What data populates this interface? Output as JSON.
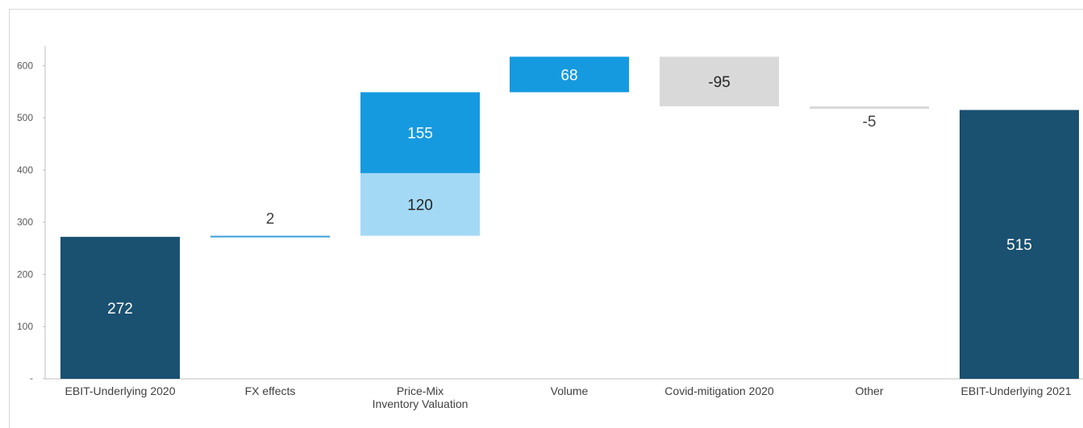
{
  "chart_data": {
    "type": "waterfall",
    "title": "",
    "xlabel": "",
    "ylabel": "",
    "ylim": [
      0,
      650
    ],
    "y_ticks": [
      {
        "value": 0,
        "label": "-"
      },
      {
        "value": 100,
        "label": "100"
      },
      {
        "value": 200,
        "label": "200"
      },
      {
        "value": 300,
        "label": "300"
      },
      {
        "value": 400,
        "label": "400"
      },
      {
        "value": 500,
        "label": "500"
      },
      {
        "value": 600,
        "label": "600"
      }
    ],
    "categories": [
      {
        "lines": [
          "EBIT-Underlying 2020"
        ]
      },
      {
        "lines": [
          "FX effects"
        ]
      },
      {
        "lines": [
          "Price-Mix",
          "Inventory Valuation"
        ]
      },
      {
        "lines": [
          "Volume"
        ]
      },
      {
        "lines": [
          "Covid-mitigation 2020"
        ]
      },
      {
        "lines": [
          "Other"
        ]
      },
      {
        "lines": [
          "EBIT-Underlying 2021"
        ]
      }
    ],
    "bars": [
      {
        "category": 0,
        "base": 0,
        "value": 272,
        "label": "272",
        "color": "#1a5070",
        "label_color": "#ffffff",
        "label_pos": "inside"
      },
      {
        "category": 1,
        "base": 272,
        "value": 2,
        "label": "2",
        "color": "#3b9fd6",
        "label_color": "#404040",
        "label_pos": "above"
      },
      {
        "category": 2,
        "base": 274,
        "value": 120,
        "label": "120",
        "color": "#a4d9f5",
        "label_color": "#262626",
        "label_pos": "inside"
      },
      {
        "category": 2,
        "base": 394,
        "value": 155,
        "label": "155",
        "color": "#159ae0",
        "label_color": "#ffffff",
        "label_pos": "inside"
      },
      {
        "category": 3,
        "base": 549,
        "value": 68,
        "label": "68",
        "color": "#159ae0",
        "label_color": "#ffffff",
        "label_pos": "inside"
      },
      {
        "category": 4,
        "base": 617,
        "value": -95,
        "label": "-95",
        "color": "#d9d9d9",
        "label_color": "#262626",
        "label_pos": "inside"
      },
      {
        "category": 5,
        "base": 522,
        "value": -5,
        "label": "-5",
        "color": "#d9d9d9",
        "label_color": "#404040",
        "label_pos": "below"
      },
      {
        "category": 6,
        "base": 0,
        "value": 515,
        "label": "515",
        "color": "#1a5070",
        "label_color": "#ffffff",
        "label_pos": "inside"
      }
    ]
  }
}
